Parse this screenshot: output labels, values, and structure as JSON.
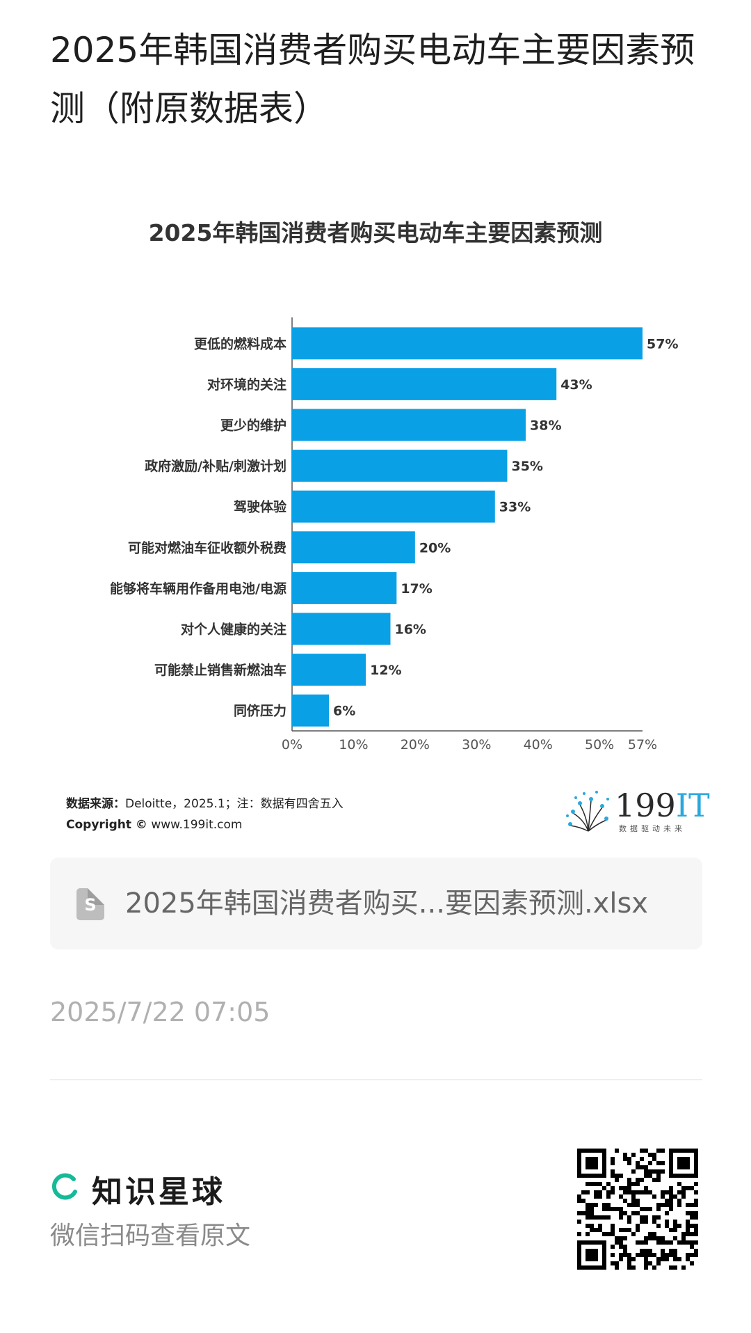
{
  "article": {
    "title": "2025年韩国消费者购买电动车主要因素预测（附原数据表）",
    "source_label": "数据来源：",
    "source_text": "Deloitte，2025.1；注：数据有四舍五入",
    "copyright_label": "Copyright ©",
    "copyright_url": "www.199it.com"
  },
  "brand": {
    "logo_main": "199",
    "logo_accent": "IT",
    "logo_sub": "数据驱动未来",
    "icon": "dandelion-logo-icon"
  },
  "attachment": {
    "file_name": "2025年韩国消费者购买...要因素预测.xlsx",
    "icon": "spreadsheet-file-icon",
    "icon_glyph": "S"
  },
  "meta": {
    "timestamp": "2025/7/22 07:05"
  },
  "footer": {
    "brand_name": "知识星球",
    "brand_icon": "ring-logo-icon",
    "scan_hint": "微信扫码查看原文",
    "qr_icon": "qr-code-icon"
  },
  "colors": {
    "bar": "#0aa0e6",
    "text": "#333333",
    "axis": "#555555"
  },
  "chart_data": {
    "type": "bar",
    "orientation": "horizontal",
    "title": "2025年韩国消费者购买电动车主要因素预测",
    "categories": [
      "更低的燃料成本",
      "对环境的关注",
      "更少的维护",
      "政府激励/补贴/刺激计划",
      "驾驶体验",
      "可能对燃油车征收额外税费",
      "能够将车辆用作备用电池/电源",
      "对个人健康的关注",
      "可能禁止销售新燃油车",
      "同侪压力"
    ],
    "values": [
      57,
      43,
      38,
      35,
      33,
      20,
      17,
      16,
      12,
      6
    ],
    "data_labels": [
      "57%",
      "43%",
      "38%",
      "35%",
      "33%",
      "20%",
      "17%",
      "16%",
      "12%",
      "6%"
    ],
    "x_ticks": [
      0,
      10,
      20,
      30,
      40,
      50,
      57
    ],
    "x_tick_labels": [
      "0%",
      "10%",
      "20%",
      "30%",
      "40%",
      "50%",
      "57%"
    ],
    "xlim": [
      0,
      57
    ],
    "grid": false,
    "legend": "none"
  }
}
